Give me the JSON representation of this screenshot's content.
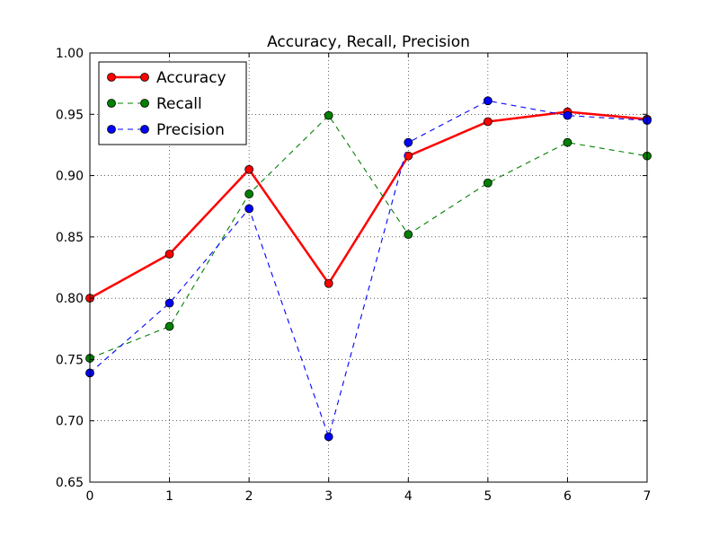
{
  "chart_data": {
    "type": "line",
    "title": "Accuracy, Recall, Precision",
    "xlabel": "",
    "ylabel": "",
    "x": [
      0,
      1,
      2,
      3,
      4,
      5,
      6,
      7
    ],
    "xlim": [
      0,
      7
    ],
    "ylim": [
      0.65,
      1.0
    ],
    "xticks": [
      "0",
      "1",
      "2",
      "3",
      "4",
      "5",
      "6",
      "7"
    ],
    "yticks": [
      "0.65",
      "0.70",
      "0.75",
      "0.80",
      "0.85",
      "0.90",
      "0.95",
      "1.00"
    ],
    "grid": true,
    "legend_position": "top-left",
    "series": [
      {
        "name": "Accuracy",
        "color": "#ff0000",
        "style": "solid",
        "values": [
          0.8,
          0.836,
          0.905,
          0.812,
          0.916,
          0.944,
          0.952,
          0.946
        ]
      },
      {
        "name": "Recall",
        "color": "#008000",
        "style": "dashed",
        "values": [
          0.751,
          0.777,
          0.885,
          0.949,
          0.852,
          0.894,
          0.927,
          0.916
        ]
      },
      {
        "name": "Precision",
        "color": "#0000ff",
        "style": "dashed",
        "values": [
          0.739,
          0.796,
          0.873,
          0.687,
          0.927,
          0.961,
          0.949,
          0.945
        ]
      }
    ]
  }
}
